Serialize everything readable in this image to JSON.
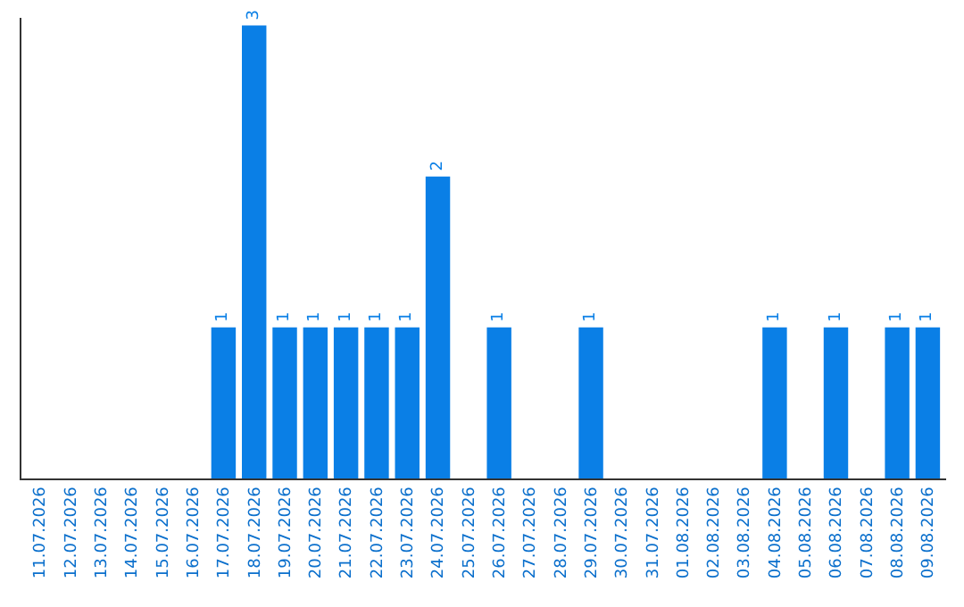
{
  "chart_data": {
    "type": "bar",
    "categories": [
      "11.07.2026",
      "12.07.2026",
      "13.07.2026",
      "14.07.2026",
      "15.07.2026",
      "16.07.2026",
      "17.07.2026",
      "18.07.2026",
      "19.07.2026",
      "20.07.2026",
      "21.07.2026",
      "22.07.2026",
      "23.07.2026",
      "24.07.2026",
      "25.07.2026",
      "26.07.2026",
      "27.07.2026",
      "28.07.2026",
      "29.07.2026",
      "30.07.2026",
      "31.07.2026",
      "01.08.2026",
      "02.08.2026",
      "03.08.2026",
      "04.08.2026",
      "05.08.2026",
      "06.08.2026",
      "07.08.2026",
      "08.08.2026",
      "09.08.2026"
    ],
    "values": [
      0,
      0,
      0,
      0,
      0,
      0,
      1,
      3,
      1,
      1,
      1,
      1,
      1,
      2,
      0,
      1,
      0,
      0,
      1,
      0,
      0,
      0,
      0,
      0,
      1,
      0,
      1,
      0,
      1,
      1
    ],
    "value_labels": [
      null,
      null,
      null,
      null,
      null,
      null,
      "1",
      "3",
      "1",
      "1",
      "1",
      "1",
      "1",
      "2",
      null,
      "1",
      null,
      null,
      "1",
      null,
      null,
      null,
      null,
      null,
      "1",
      null,
      "1",
      null,
      "1",
      "1"
    ],
    "color": "#0a7fe6",
    "ylim": [
      0,
      3.05
    ],
    "tick_labels": "x"
  }
}
